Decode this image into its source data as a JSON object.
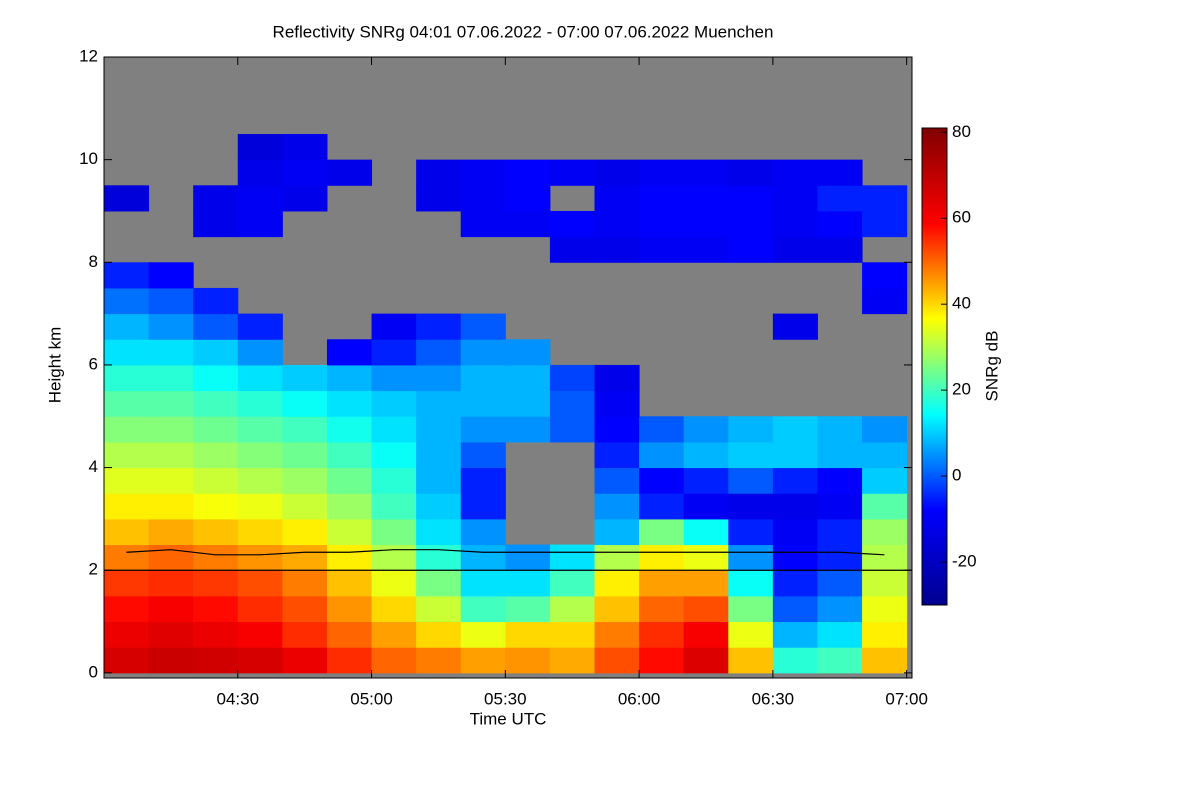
{
  "chart_data": {
    "type": "heatmap",
    "title": "Reflectivity SNRg   04:01 07.06.2022 - 07:00 07.06.2022 Muenchen",
    "xlabel": "Time UTC",
    "ylabel": "Height km",
    "colorbar_label": "SNRg dB",
    "xlim": [
      4.0,
      7.02
    ],
    "ylim": [
      -0.1,
      12.0
    ],
    "clim": [
      -30,
      81
    ],
    "xticks": [
      {
        "value": 4.5,
        "label": "04:30"
      },
      {
        "value": 5.0,
        "label": "05:00"
      },
      {
        "value": 5.5,
        "label": "05:30"
      },
      {
        "value": 6.0,
        "label": "06:00"
      },
      {
        "value": 6.5,
        "label": "06:30"
      },
      {
        "value": 7.0,
        "label": "07:00"
      }
    ],
    "yticks": [
      0,
      2,
      4,
      6,
      8,
      10,
      12
    ],
    "cticks": [
      -20,
      0,
      20,
      40,
      60,
      80
    ],
    "colormap": [
      "#00008f",
      "#0000ff",
      "#00ffff",
      "#ffff00",
      "#ff0000",
      "#800000"
    ],
    "missing_color": "#808080",
    "x": [
      4.0833,
      4.25,
      4.4167,
      4.5833,
      4.75,
      4.9167,
      5.0833,
      5.25,
      5.4167,
      5.5833,
      5.75,
      5.9167,
      6.0833,
      6.25,
      6.4167,
      6.5833,
      6.75,
      6.9167
    ],
    "y": [
      0.25,
      0.75,
      1.25,
      1.75,
      2.25,
      2.75,
      3.25,
      3.75,
      4.25,
      4.75,
      5.25,
      5.75,
      6.25,
      6.75,
      7.25,
      7.75,
      8.25,
      8.75,
      9.25,
      9.75,
      10.25,
      10.75,
      11.25,
      11.75
    ],
    "z": [
      [
        66,
        68,
        67,
        66,
        62,
        55,
        50,
        48,
        45,
        46,
        44,
        52,
        58,
        65,
        42,
        18,
        20,
        42
      ],
      [
        62,
        64,
        62,
        60,
        55,
        50,
        45,
        40,
        35,
        40,
        40,
        48,
        55,
        60,
        35,
        8,
        12,
        38
      ],
      [
        58,
        60,
        58,
        55,
        52,
        46,
        40,
        32,
        20,
        22,
        30,
        42,
        50,
        52,
        25,
        0,
        5,
        35
      ],
      [
        54,
        55,
        54,
        52,
        48,
        42,
        35,
        25,
        12,
        12,
        20,
        38,
        45,
        45,
        15,
        -5,
        0,
        32
      ],
      [
        48,
        50,
        48,
        46,
        44,
        38,
        30,
        18,
        8,
        5,
        12,
        30,
        38,
        35,
        5,
        -8,
        -5,
        30
      ],
      [
        42,
        44,
        42,
        40,
        38,
        32,
        25,
        12,
        5,
        null,
        null,
        8,
        25,
        15,
        -5,
        -10,
        -5,
        28
      ],
      [
        38,
        38,
        36,
        35,
        32,
        28,
        20,
        10,
        -5,
        null,
        null,
        5,
        -5,
        -10,
        -12,
        -12,
        -10,
        22
      ],
      [
        34,
        34,
        32,
        30,
        28,
        24,
        18,
        8,
        -5,
        null,
        null,
        0,
        -8,
        -5,
        0,
        -5,
        -8,
        10
      ],
      [
        30,
        30,
        28,
        26,
        24,
        20,
        15,
        8,
        0,
        null,
        null,
        -5,
        5,
        8,
        10,
        10,
        8,
        8
      ],
      [
        26,
        26,
        24,
        22,
        20,
        16,
        12,
        8,
        5,
        5,
        0,
        -8,
        0,
        5,
        8,
        10,
        8,
        5
      ],
      [
        22,
        22,
        20,
        18,
        15,
        12,
        10,
        8,
        8,
        8,
        0,
        -10,
        null,
        null,
        null,
        null,
        null,
        null
      ],
      [
        18,
        18,
        15,
        12,
        10,
        8,
        5,
        5,
        8,
        8,
        -2,
        -12,
        null,
        null,
        null,
        null,
        null,
        null
      ],
      [
        12,
        12,
        10,
        5,
        null,
        -8,
        -5,
        0,
        5,
        5,
        null,
        null,
        null,
        null,
        null,
        null,
        null,
        null
      ],
      [
        8,
        5,
        0,
        -5,
        null,
        null,
        -10,
        -5,
        0,
        null,
        null,
        null,
        null,
        null,
        null,
        -12,
        null,
        null
      ],
      [
        2,
        0,
        -5,
        null,
        null,
        null,
        null,
        null,
        null,
        null,
        null,
        null,
        null,
        null,
        null,
        null,
        null,
        -10
      ],
      [
        -5,
        -8,
        null,
        null,
        null,
        null,
        null,
        null,
        null,
        null,
        null,
        null,
        null,
        null,
        null,
        null,
        null,
        -8
      ],
      [
        null,
        null,
        null,
        null,
        null,
        null,
        null,
        null,
        null,
        null,
        -12,
        -12,
        -10,
        -10,
        -8,
        -12,
        -12,
        null
      ],
      [
        null,
        null,
        -12,
        -10,
        null,
        null,
        null,
        null,
        -10,
        -10,
        -8,
        -10,
        -8,
        -8,
        -8,
        -10,
        -8,
        -5
      ],
      [
        -15,
        null,
        -12,
        -10,
        -12,
        null,
        null,
        -12,
        -10,
        -8,
        null,
        -10,
        -8,
        -8,
        -8,
        -10,
        -5,
        -5
      ],
      [
        null,
        null,
        null,
        -12,
        -10,
        -12,
        null,
        -12,
        -10,
        -8,
        -10,
        -12,
        -10,
        -10,
        -12,
        -10,
        -10,
        null
      ],
      [
        null,
        null,
        null,
        -15,
        -12,
        null,
        null,
        null,
        null,
        null,
        null,
        null,
        null,
        null,
        null,
        null,
        null,
        null
      ],
      [
        null,
        null,
        null,
        null,
        null,
        null,
        null,
        null,
        null,
        null,
        null,
        null,
        null,
        null,
        null,
        null,
        null,
        null
      ],
      [
        null,
        null,
        null,
        null,
        null,
        null,
        null,
        null,
        null,
        null,
        null,
        null,
        null,
        null,
        null,
        null,
        null,
        null
      ],
      [
        null,
        null,
        null,
        null,
        null,
        null,
        null,
        null,
        null,
        null,
        null,
        null,
        null,
        null,
        null,
        null,
        null,
        null
      ]
    ],
    "overlay_lines": [
      {
        "color": "#000000",
        "x": [
          4.0833,
          4.25,
          4.4167,
          4.5833,
          4.75,
          4.9167,
          5.0833,
          5.25,
          5.4167,
          5.5833,
          5.75,
          5.9167,
          6.0833,
          6.25,
          6.4167,
          6.5833,
          6.75,
          6.9167
        ],
        "values": [
          2.35,
          2.4,
          2.3,
          2.3,
          2.35,
          2.35,
          2.4,
          2.4,
          2.35,
          2.35,
          2.35,
          2.35,
          2.35,
          2.35,
          2.35,
          2.35,
          2.35,
          2.3
        ]
      },
      {
        "color": "#000000",
        "x": [
          4.0,
          7.02
        ],
        "values": [
          2.0,
          2.0
        ]
      }
    ]
  }
}
